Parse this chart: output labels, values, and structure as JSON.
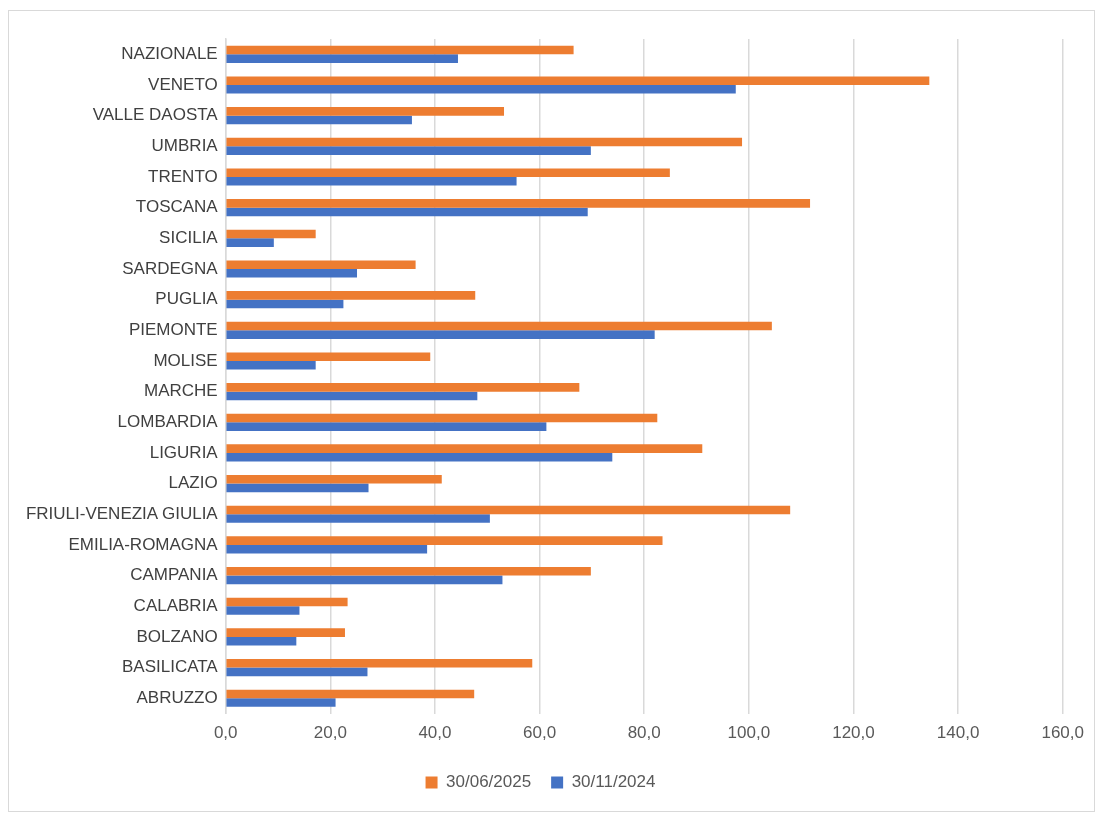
{
  "chart_data": {
    "type": "bar",
    "orientation": "horizontal",
    "categories": [
      "NAZIONALE",
      "VENETO",
      "VALLE DAOSTA",
      "UMBRIA",
      "TRENTO",
      "TOSCANA",
      "SICILIA",
      "SARDEGNA",
      "PUGLIA",
      "PIEMONTE",
      "MOLISE",
      "MARCHE",
      "LOMBARDIA",
      "LIGURIA",
      "LAZIO",
      "FRIULI-VENEZIA GIULIA",
      "EMILIA-ROMAGNA",
      "CAMPANIA",
      "CALABRIA",
      "BOLZANO",
      "BASILICATA",
      "ABRUZZO"
    ],
    "series": [
      {
        "name": "30/06/2025",
        "color": "#ed7d31",
        "values": [
          66.5,
          134.5,
          53.2,
          98.7,
          84.9,
          111.7,
          17.2,
          36.3,
          47.7,
          104.4,
          39.1,
          67.6,
          82.5,
          91.1,
          41.3,
          107.9,
          83.5,
          69.8,
          23.3,
          22.8,
          58.6,
          47.5
        ]
      },
      {
        "name": "30/11/2024",
        "color": "#4472c4",
        "values": [
          44.4,
          97.5,
          35.6,
          69.8,
          55.6,
          69.2,
          9.2,
          25.1,
          22.5,
          82.0,
          17.2,
          48.1,
          61.3,
          73.9,
          27.3,
          50.5,
          38.5,
          52.9,
          14.1,
          13.5,
          27.1,
          21.0
        ]
      }
    ],
    "xlim": [
      0,
      160
    ],
    "xticks": [
      {
        "value": 0,
        "label": "0,0"
      },
      {
        "value": 20,
        "label": "20,0"
      },
      {
        "value": 40,
        "label": "40,0"
      },
      {
        "value": 60,
        "label": "60,0"
      },
      {
        "value": 80,
        "label": "80,0"
      },
      {
        "value": 100,
        "label": "100,0"
      },
      {
        "value": 120,
        "label": "120,0"
      },
      {
        "value": 140,
        "label": "140,0"
      },
      {
        "value": 160,
        "label": "160,0"
      }
    ],
    "grid": "x",
    "legend": "bottom"
  }
}
